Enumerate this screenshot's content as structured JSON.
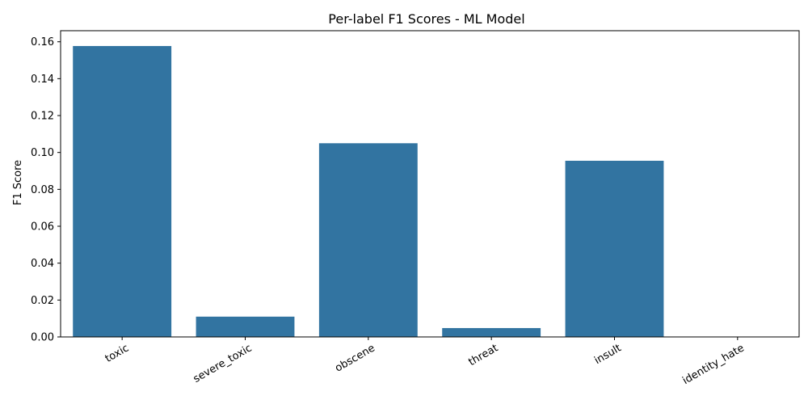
{
  "chart_data": {
    "type": "bar",
    "title": "Per-label F1 Scores - ML Model",
    "xlabel": "",
    "ylabel": "F1 Score",
    "categories": [
      "toxic",
      "severe_toxic",
      "obscene",
      "threat",
      "insult",
      "identity_hate"
    ],
    "values": [
      0.1577,
      0.011,
      0.105,
      0.0048,
      0.0955,
      0.0
    ],
    "ylim": [
      0,
      0.166
    ],
    "yticks": [
      0.0,
      0.02,
      0.04,
      0.06,
      0.08,
      0.1,
      0.12,
      0.14,
      0.16
    ],
    "ytick_labels": [
      "0.00",
      "0.02",
      "0.04",
      "0.06",
      "0.08",
      "0.10",
      "0.12",
      "0.14",
      "0.16"
    ],
    "grid": false,
    "bar_color": "#3274a1",
    "xtick_rotation_deg": 30
  }
}
